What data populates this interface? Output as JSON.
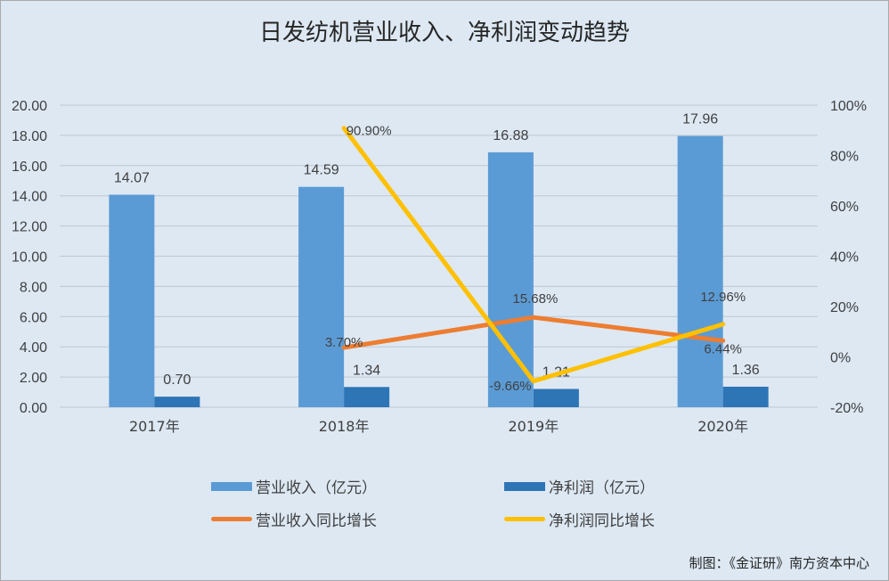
{
  "chart_data": {
    "type": "bar",
    "title": "日发纺机营业收入、净利润变动趋势",
    "categories": [
      "2017年",
      "2018年",
      "2019年",
      "2020年"
    ],
    "series": [
      {
        "name": "营业收入（亿元）",
        "kind": "bar",
        "axis": "left",
        "color": "#5b9bd5",
        "values": [
          14.07,
          14.59,
          16.88,
          17.96
        ],
        "labels": [
          "14.07",
          "14.59",
          "16.88",
          "17.96"
        ]
      },
      {
        "name": "净利润（亿元）",
        "kind": "bar",
        "axis": "left",
        "color": "#2e75b6",
        "values": [
          0.7,
          1.34,
          1.21,
          1.36
        ],
        "labels": [
          "0.70",
          "1.34",
          "1.21",
          "1.36"
        ]
      },
      {
        "name": "营业收入同比增长",
        "kind": "line",
        "axis": "right",
        "color": "#ed7d31",
        "values": [
          null,
          3.7,
          15.68,
          6.44
        ],
        "labels": [
          null,
          "3.70%",
          "15.68%",
          "6.44%"
        ]
      },
      {
        "name": "净利润同比增长",
        "kind": "line",
        "axis": "right",
        "color": "#ffc000",
        "values": [
          null,
          90.9,
          -9.66,
          12.96
        ],
        "labels": [
          null,
          "90.90%",
          "-9.66%",
          "12.96%"
        ]
      }
    ],
    "y_left": {
      "min": 0,
      "max": 20,
      "ticks": [
        "0.00",
        "2.00",
        "4.00",
        "6.00",
        "8.00",
        "10.00",
        "12.00",
        "14.00",
        "16.00",
        "18.00",
        "20.00"
      ]
    },
    "y_right": {
      "min": -20,
      "max": 100,
      "ticks": [
        "-20%",
        "0%",
        "20%",
        "40%",
        "60%",
        "80%",
        "100%"
      ]
    },
    "grid": true,
    "legend_position": "bottom"
  },
  "source": "制图：《金证研》南方资本中心"
}
